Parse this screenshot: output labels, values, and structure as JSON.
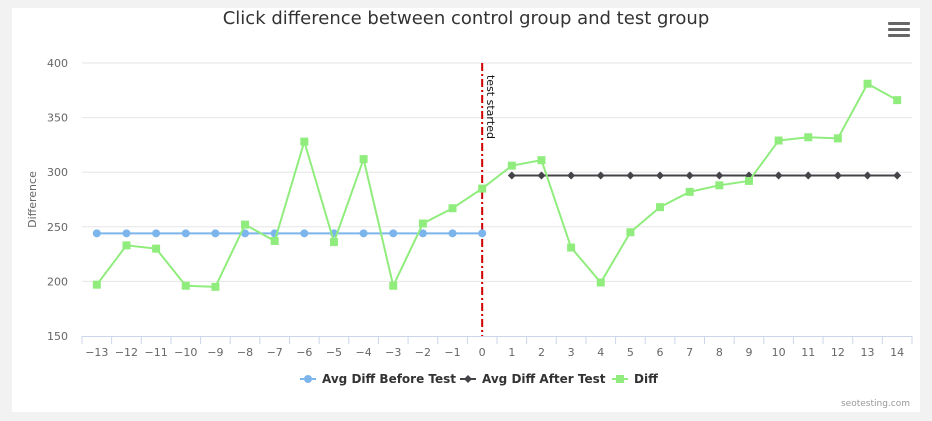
{
  "chart_data": {
    "type": "line",
    "title": "Click difference between control group and test group",
    "ylabel": "Difference",
    "xlabel": "",
    "ylim": [
      150,
      400
    ],
    "yticks": [
      150,
      200,
      250,
      300,
      350,
      400
    ],
    "x": [
      -13,
      -12,
      -11,
      -10,
      -9,
      -8,
      -7,
      -6,
      -5,
      -4,
      -3,
      -2,
      -1,
      0,
      1,
      2,
      3,
      4,
      5,
      6,
      7,
      8,
      9,
      10,
      11,
      12,
      13,
      14
    ],
    "grid": "horizontal",
    "legend_position": "bottom",
    "plot_line": {
      "x": 0,
      "label": "test started",
      "color": "#cc0000"
    },
    "series": [
      {
        "name": "Avg Diff Before Test",
        "color": "#7cb5ec",
        "marker": "circle",
        "points": [
          [
            -13,
            244
          ],
          [
            -12,
            244
          ],
          [
            -11,
            244
          ],
          [
            -10,
            244
          ],
          [
            -9,
            244
          ],
          [
            -8,
            244
          ],
          [
            -7,
            244
          ],
          [
            -6,
            244
          ],
          [
            -5,
            244
          ],
          [
            -4,
            244
          ],
          [
            -3,
            244
          ],
          [
            -2,
            244
          ],
          [
            -1,
            244
          ],
          [
            0,
            244
          ]
        ]
      },
      {
        "name": "Avg Diff After Test",
        "color": "#434348",
        "marker": "diamond",
        "points": [
          [
            1,
            297
          ],
          [
            2,
            297
          ],
          [
            3,
            297
          ],
          [
            4,
            297
          ],
          [
            5,
            297
          ],
          [
            6,
            297
          ],
          [
            7,
            297
          ],
          [
            8,
            297
          ],
          [
            9,
            297
          ],
          [
            10,
            297
          ],
          [
            11,
            297
          ],
          [
            12,
            297
          ],
          [
            13,
            297
          ],
          [
            14,
            297
          ]
        ]
      },
      {
        "name": "Diff",
        "color": "#90ed7d",
        "marker": "square",
        "points": [
          [
            -13,
            197
          ],
          [
            -12,
            233
          ],
          [
            -11,
            230
          ],
          [
            -10,
            196
          ],
          [
            -9,
            195
          ],
          [
            -8,
            252
          ],
          [
            -7,
            237
          ],
          [
            -6,
            328
          ],
          [
            -5,
            236
          ],
          [
            -4,
            312
          ],
          [
            -3,
            196
          ],
          [
            -2,
            253
          ],
          [
            -1,
            267
          ],
          [
            0,
            285
          ],
          [
            1,
            306
          ],
          [
            2,
            311
          ],
          [
            3,
            231
          ],
          [
            4,
            199
          ],
          [
            5,
            245
          ],
          [
            6,
            268
          ],
          [
            7,
            282
          ],
          [
            8,
            288
          ],
          [
            9,
            292
          ],
          [
            10,
            329
          ],
          [
            11,
            332
          ],
          [
            12,
            331
          ],
          [
            13,
            381
          ],
          [
            14,
            366
          ]
        ]
      }
    ]
  },
  "credit": "seotesting.com"
}
